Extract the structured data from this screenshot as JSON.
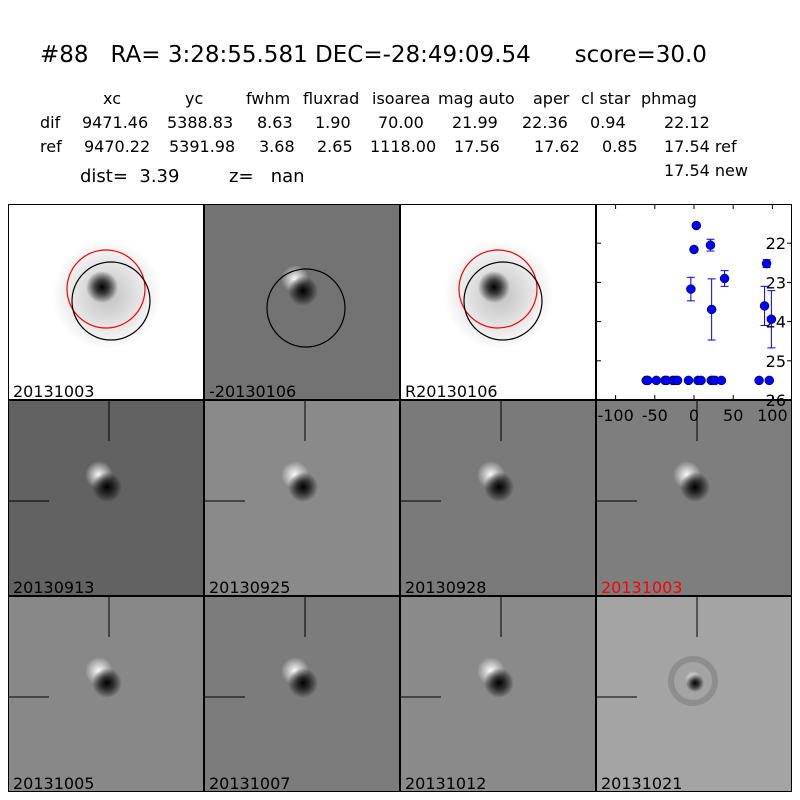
{
  "header": {
    "title": "#88   RA= 3:28:55.581 DEC=-28:49:09.54      score=30.0",
    "columns": [
      "xc",
      "yc",
      "fwhm",
      "fluxrad",
      "isoarea",
      "mag auto",
      "aper",
      "cl star",
      "phmag"
    ],
    "rows": [
      {
        "label": "dif",
        "values": [
          "9471.46",
          "5388.83",
          "8.63",
          "1.90",
          "70.00",
          "21.99",
          "22.36",
          "0.94",
          "22.12"
        ]
      },
      {
        "label": "ref",
        "values": [
          "9470.22",
          "5391.98",
          "3.68",
          "2.65",
          "1118.00",
          "17.56",
          "17.62",
          "0.85",
          "17.54 ref"
        ]
      }
    ],
    "extra_phmag": "17.54 new",
    "dist": "dist=  3.39",
    "z": "z=   nan"
  },
  "panels": [
    {
      "label": "20131003",
      "bg": "#ffffff",
      "type": "ref",
      "circles": true,
      "label_color": "#000000"
    },
    {
      "label": "-20130106",
      "bg": "#737373",
      "type": "dipole",
      "circle": true,
      "label_color": "#000000"
    },
    {
      "label": "R20130106",
      "bg": "#ffffff",
      "type": "ref",
      "circles": true,
      "label_color": "#000000"
    },
    {
      "label": "20130913",
      "bg": "#626262",
      "type": "dipole",
      "cross": true,
      "label_color": "#000000"
    },
    {
      "label": "20130925",
      "bg": "#8a8a8a",
      "type": "dipole",
      "cross": true,
      "label_color": "#000000"
    },
    {
      "label": "20130928",
      "bg": "#7a7a7a",
      "type": "dipole",
      "cross": true,
      "label_color": "#000000"
    },
    {
      "label": "20131003",
      "bg": "#7e7e7e",
      "type": "dipole",
      "cross": true,
      "label_color": "#ff0000"
    },
    {
      "label": "20131005",
      "bg": "#888888",
      "type": "dipole",
      "cross": true,
      "label_color": "#000000"
    },
    {
      "label": "20131007",
      "bg": "#7c7c7c",
      "type": "dipole",
      "cross": true,
      "label_color": "#000000"
    },
    {
      "label": "20131012",
      "bg": "#8a8a8a",
      "type": "dipole",
      "cross": true,
      "label_color": "#000000"
    },
    {
      "label": "20131021",
      "bg": "#a4a4a4",
      "type": "ring",
      "cross": true,
      "label_color": "#000000"
    }
  ],
  "chart_data": {
    "type": "scatter",
    "title": "",
    "xlabel": "",
    "ylabel": "",
    "xlim": [
      -125,
      125
    ],
    "ylim": [
      26,
      21
    ],
    "y_inverted": true,
    "xticks": [
      -100,
      -50,
      0,
      50,
      100
    ],
    "yticks": [
      22,
      23,
      24,
      25,
      26
    ],
    "color": "#0000ff",
    "detections": [
      {
        "x": -4,
        "y": 23.17,
        "err": 0.3
      },
      {
        "x": 0,
        "y": 22.16,
        "err": 0.05
      },
      {
        "x": 3,
        "y": 21.55,
        "err": 0.05
      },
      {
        "x": 21,
        "y": 22.05,
        "err": 0.15
      },
      {
        "x": 22.5,
        "y": 23.69,
        "err": 0.78
      },
      {
        "x": 39,
        "y": 22.9,
        "err": 0.2
      },
      {
        "x": 90,
        "y": 23.6,
        "err": 0.5
      },
      {
        "x": 92.6,
        "y": 22.52,
        "err": 0.1
      },
      {
        "x": 98.7,
        "y": 23.94,
        "err": 0.73
      }
    ],
    "limits_y": 25.5,
    "limits_x": [
      -61,
      -59,
      -48,
      -37,
      -35,
      -27,
      -24,
      -21,
      -7,
      5,
      9,
      22,
      24,
      27,
      35,
      83,
      96
    ]
  }
}
